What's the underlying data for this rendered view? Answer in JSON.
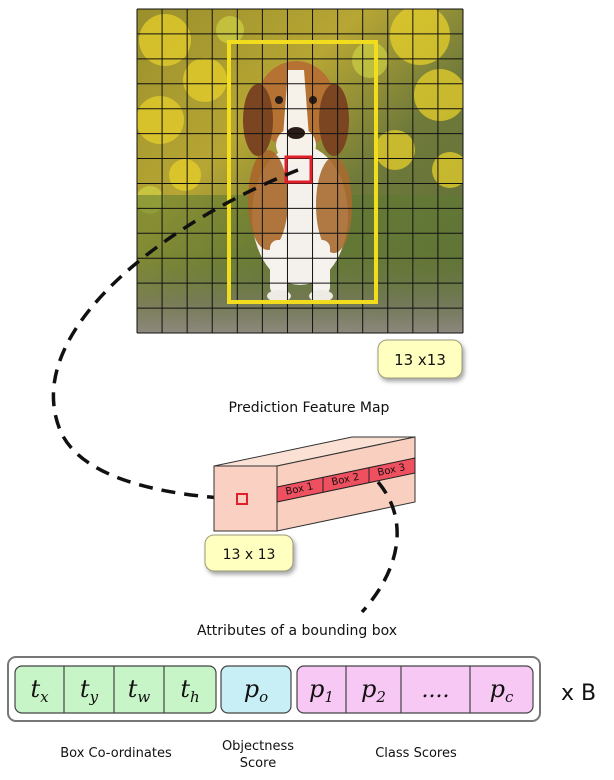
{
  "photo": {
    "description_icon": "beagle-photo",
    "grid_cells": 13
  },
  "badges": {
    "map_size": "13 x13",
    "cell_size": "13 x 13"
  },
  "labels": {
    "feature_map": "Prediction Feature Map",
    "attributes": "Attributes of a bounding box",
    "box_coordinates": "Box Co-ordinates",
    "objectness_line1": "Objectness",
    "objectness_line2": "Score",
    "class_scores": "Class Scores",
    "times_b": "x B"
  },
  "column_boxes": [
    "Box 1",
    "Box 2",
    "Box 3"
  ],
  "attributes": {
    "coords": [
      {
        "base": "t",
        "sub": "x"
      },
      {
        "base": "t",
        "sub": "y"
      },
      {
        "base": "t",
        "sub": "w"
      },
      {
        "base": "t",
        "sub": "h"
      }
    ],
    "objectness": {
      "base": "p",
      "sub": "o"
    },
    "classes": [
      {
        "base": "p",
        "sub": "1"
      },
      {
        "base": "p",
        "sub": "2"
      },
      {
        "base": "....",
        "sub": ""
      },
      {
        "base": "p",
        "sub": "c"
      }
    ]
  },
  "colors": {
    "bbox": "#f2dc1e",
    "cell": "#e0202a",
    "badge": "#ffffc0",
    "coord_fill": "#c8f5c8",
    "obj_fill": "#c8eef6",
    "class_fill": "#f8c8f4",
    "tensor_face": "#f9cfc0",
    "tensor_strip": "#ee5060"
  }
}
